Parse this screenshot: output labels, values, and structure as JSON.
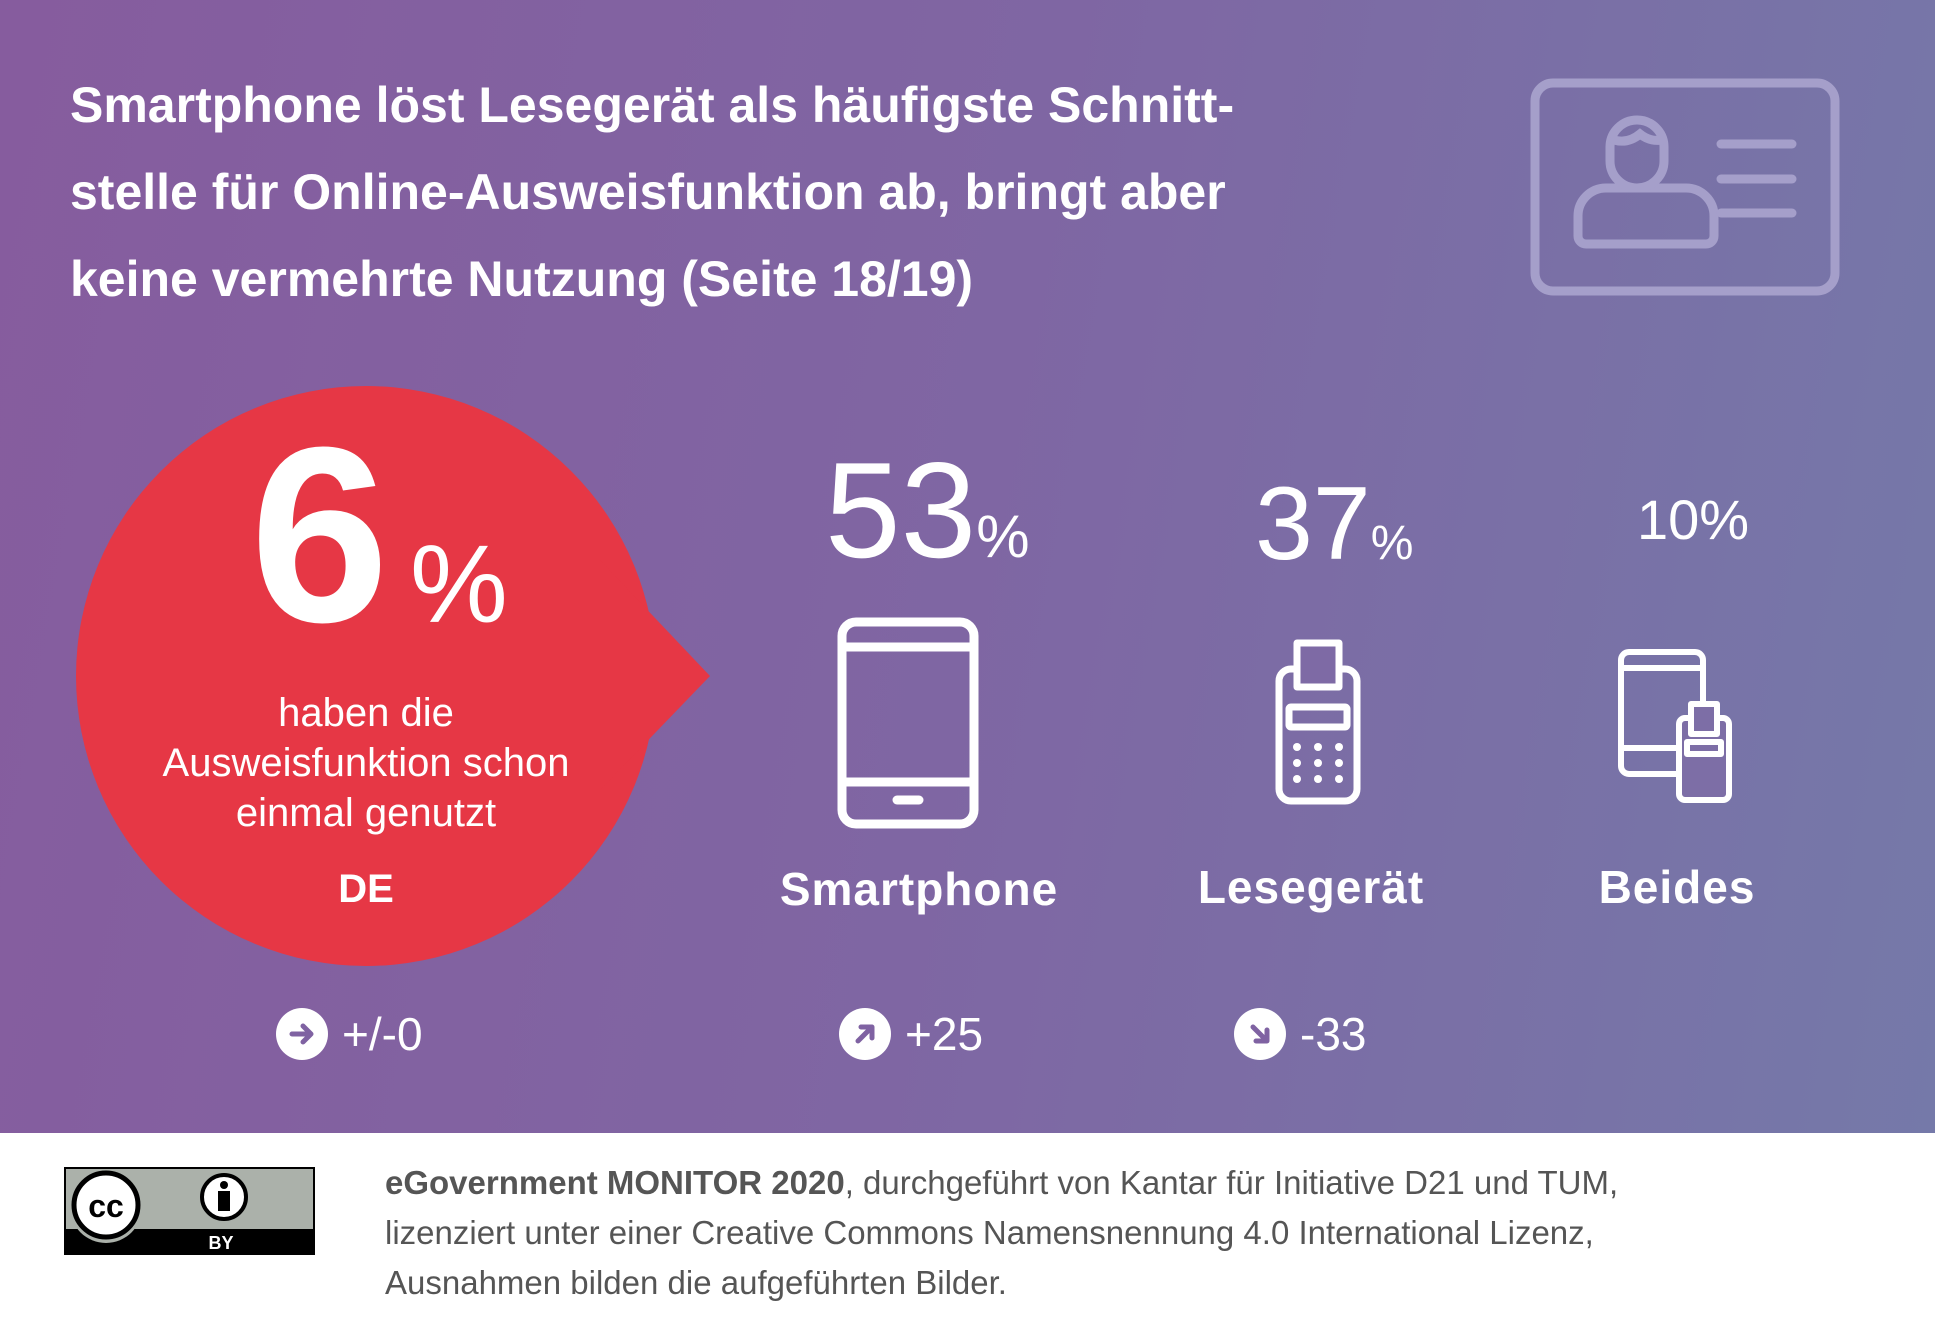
{
  "title": {
    "line1": "Smartphone löst Lesegerät als häufigste Schnitt-",
    "line2": "stelle für Online-Ausweisfunktion ab, bringt aber",
    "line3": "keine vermehrte Nutzung (Seite 18/19)"
  },
  "colors": {
    "accent_red": "#e63745",
    "background_left": "#865c9e",
    "background_right": "#7579a9",
    "icon_light": "#a59fca",
    "footer_text": "#555555"
  },
  "highlight": {
    "value": "6",
    "unit": "%",
    "text_line1": "haben die",
    "text_line2": "Ausweisfunktion schon",
    "text_line3": "einmal genutzt",
    "region": "DE",
    "change": "+/-0",
    "change_icon": "arrow-right-icon"
  },
  "interfaces": [
    {
      "value": "53",
      "unit": "%",
      "label": "Smartphone",
      "icon": "smartphone-icon",
      "change": "+25",
      "change_icon": "arrow-up-right-icon"
    },
    {
      "value": "37",
      "unit": "%",
      "label": "Lesegerät",
      "icon": "card-reader-icon",
      "change": "-33",
      "change_icon": "arrow-down-right-icon"
    },
    {
      "value": "10",
      "unit": "%",
      "label": "Beides",
      "icon": "phone-and-reader-icon"
    }
  ],
  "footer": {
    "bold": "eGovernment MONITOR 2020",
    "line1_rest": ", durchgeführt von Kantar für Initiative D21 und TUM,",
    "line2": "lizenziert unter einer Creative Commons Namensnennung 4.0 International Lizenz,",
    "line3": "Ausnahmen bilden die aufgeführten Bilder.",
    "license_badge": {
      "cc": "cc",
      "by": "BY"
    }
  }
}
